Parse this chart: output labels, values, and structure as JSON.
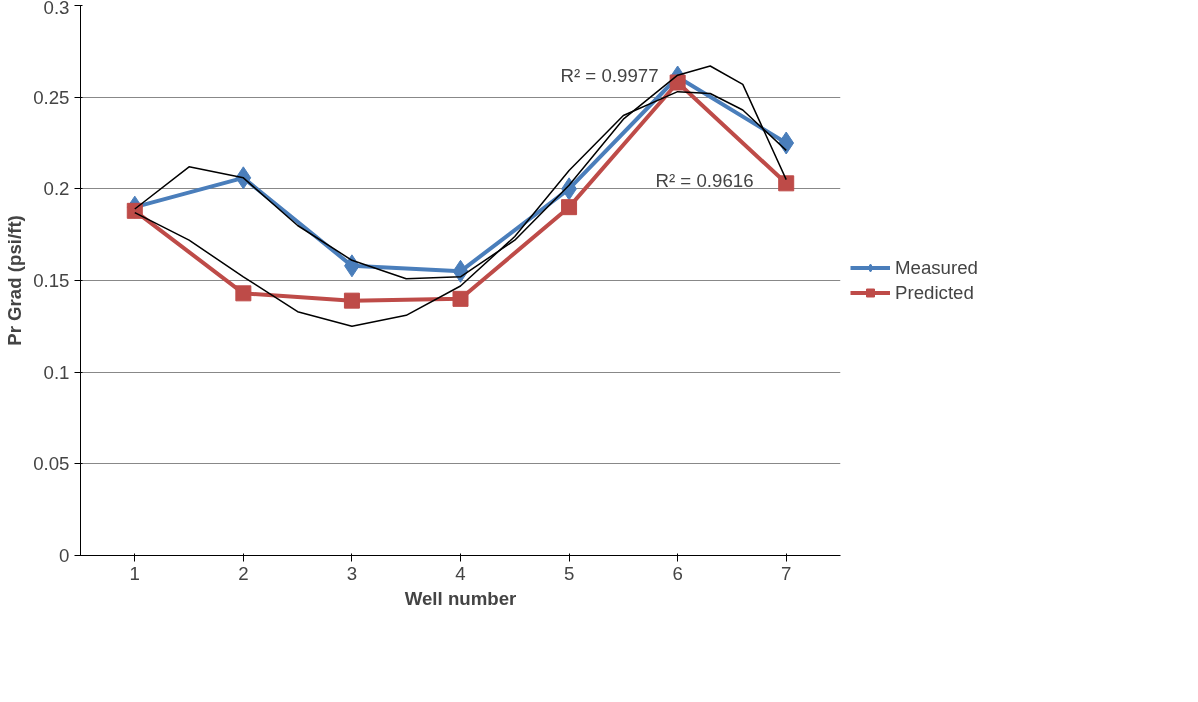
{
  "chart_data": {
    "type": "line",
    "xlabel": "Well number",
    "ylabel": "Pr Grad (psi/ft)",
    "x": [
      1,
      2,
      3,
      4,
      5,
      6,
      7
    ],
    "xlim": [
      0.5,
      7.5
    ],
    "xticks": [
      1,
      2,
      3,
      4,
      5,
      6,
      7
    ],
    "ylim": [
      0,
      0.3
    ],
    "yticks": [
      0,
      0.05,
      0.1,
      0.15,
      0.2,
      0.25,
      0.3
    ],
    "grid": "y",
    "legend": "right",
    "series": [
      {
        "name": "Measured",
        "color": "#4a7ebb",
        "marker": "diamond",
        "values": [
          0.19,
          0.206,
          0.158,
          0.155,
          0.2,
          0.261,
          0.225
        ]
      },
      {
        "name": "Predicted",
        "color": "#be4b48",
        "marker": "square",
        "values": [
          0.188,
          0.143,
          0.139,
          0.14,
          0.19,
          0.258,
          0.203
        ]
      },
      {
        "type": "line",
        "color": "#000000",
        "marker": "none",
        "x": [
          1,
          1.5,
          2,
          2.5,
          3,
          3.5,
          4,
          4.5,
          5,
          5.5,
          6,
          6.3,
          6.6,
          7
        ],
        "values": [
          0.189,
          0.212,
          0.206,
          0.18,
          0.161,
          0.151,
          0.152,
          0.172,
          0.202,
          0.238,
          0.262,
          0.267,
          0.257,
          0.205
        ]
      },
      {
        "type": "line",
        "color": "#000000",
        "marker": "none",
        "x": [
          1,
          1.5,
          2,
          2.5,
          3,
          3.5,
          4,
          4.5,
          5,
          5.5,
          6,
          6.3,
          6.6,
          7
        ],
        "values": [
          0.187,
          0.172,
          0.152,
          0.133,
          0.125,
          0.131,
          0.147,
          0.174,
          0.21,
          0.24,
          0.253,
          0.252,
          0.243,
          0.221
        ]
      }
    ],
    "annotations": [
      "R² = 0.9977",
      "R² = 0.9616"
    ]
  }
}
